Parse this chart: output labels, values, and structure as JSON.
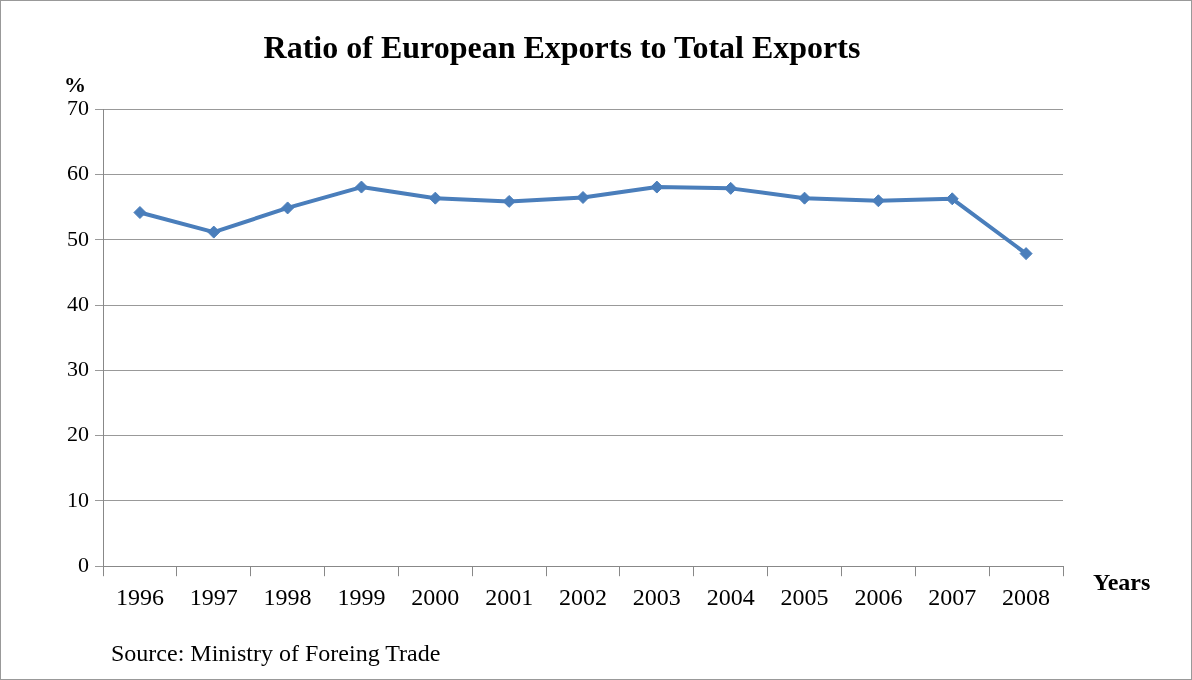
{
  "chart_data": {
    "type": "line",
    "title": "Ratio of European Exports to Total Exports",
    "ylabel": "%",
    "xlabel": "Years",
    "categories": [
      "1996",
      "1997",
      "1998",
      "1999",
      "2000",
      "2001",
      "2002",
      "2003",
      "2004",
      "2005",
      "2006",
      "2007",
      "2008"
    ],
    "series": [
      {
        "color": "#4a7ebb",
        "values": [
          54.2,
          51.2,
          54.9,
          58.1,
          56.4,
          55.9,
          56.5,
          58.1,
          57.9,
          56.4,
          56.0,
          56.3,
          47.9
        ]
      }
    ],
    "ylim": [
      0,
      70
    ],
    "yticks": [
      0,
      10,
      20,
      30,
      40,
      50,
      60,
      70
    ],
    "grid": "y",
    "legend": false,
    "marker": "diamond",
    "line_style": "solid",
    "annotations": [
      "Source: Ministry of Foreing Trade"
    ]
  }
}
